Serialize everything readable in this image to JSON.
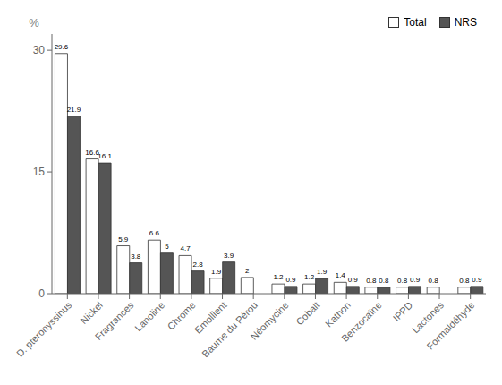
{
  "chart_data": {
    "type": "bar",
    "categories": [
      "D. pteronyssinus",
      "Nickel",
      "Fragrances",
      "Lanoline",
      "Chrome",
      "Emollient",
      "Baume du Pérou",
      "Néomycine",
      "Cobalt",
      "Kathon",
      "Benzocaïne",
      "IPPD",
      "Lactones",
      "Formaldéhyde"
    ],
    "series": [
      {
        "name": "Total",
        "color": "#ffffff",
        "values": [
          29.6,
          16.6,
          5.9,
          6.6,
          4.7,
          1.9,
          2.0,
          1.2,
          1.2,
          1.4,
          0.8,
          0.8,
          0.8,
          0.8
        ]
      },
      {
        "name": "NRS",
        "color": "#555555",
        "values": [
          21.9,
          16.1,
          3.8,
          5.0,
          2.8,
          3.9,
          null,
          0.9,
          1.9,
          0.9,
          0.8,
          0.9,
          null,
          0.9
        ]
      }
    ],
    "ylabel": "%",
    "ylim": [
      0,
      32
    ],
    "yticks": [
      0,
      15,
      30
    ],
    "grid": false,
    "legend": "upper right",
    "data_labels": true
  }
}
